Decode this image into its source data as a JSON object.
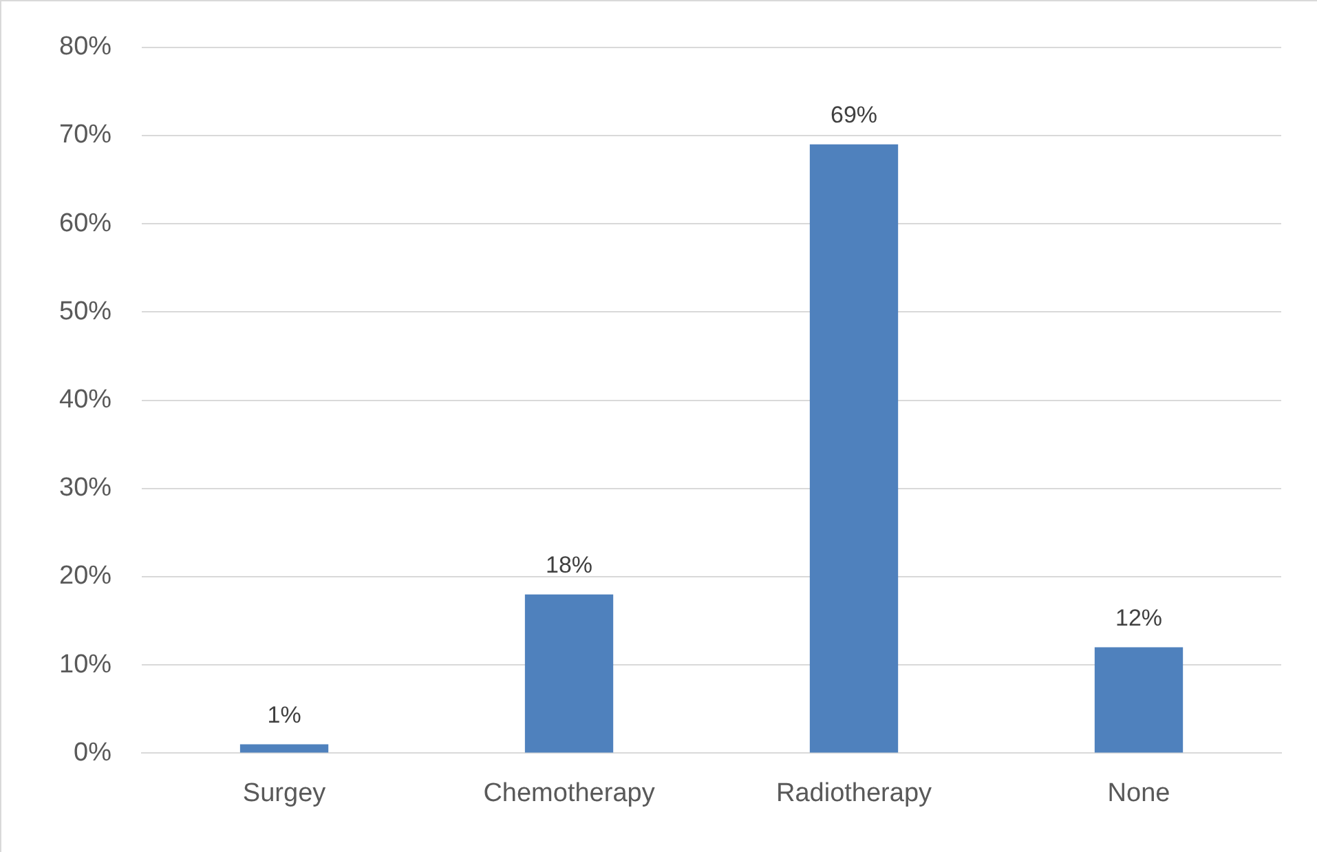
{
  "chart_data": {
    "type": "bar",
    "categories": [
      "Surgey",
      "Chemotherapy",
      "Radiotherapy",
      "None"
    ],
    "values": [
      1,
      18,
      69,
      12
    ],
    "color": "#4f81bd",
    "value_labels": [
      "1%",
      "18%",
      "69%",
      "12%"
    ],
    "ylim": [
      0,
      80
    ],
    "yticks": [
      {
        "value": 0,
        "label": "0%"
      },
      {
        "value": 10,
        "label": "10%"
      },
      {
        "value": 20,
        "label": "20%"
      },
      {
        "value": 30,
        "label": "30%"
      },
      {
        "value": 40,
        "label": "40%"
      },
      {
        "value": 50,
        "label": "50%"
      },
      {
        "value": 60,
        "label": "60%"
      },
      {
        "value": 70,
        "label": "70%"
      },
      {
        "value": 80,
        "label": "80%"
      }
    ],
    "grid": "y",
    "legend": false
  }
}
